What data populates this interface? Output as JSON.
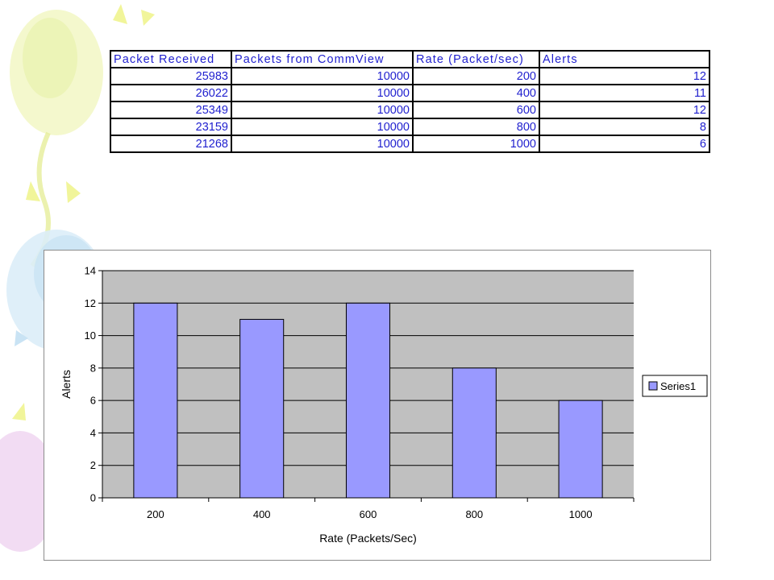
{
  "table": {
    "headers": [
      "Packet Received",
      "Packets from CommView",
      "Rate (Packet/sec)",
      "Alerts"
    ],
    "rows": [
      [
        "25983",
        "10000",
        "200",
        "12"
      ],
      [
        "26022",
        "10000",
        "400",
        "11"
      ],
      [
        "25349",
        "10000",
        "600",
        "12"
      ],
      [
        "23159",
        "10000",
        "800",
        "8"
      ],
      [
        "21268",
        "10000",
        "1000",
        "6"
      ]
    ]
  },
  "chart_data": {
    "type": "bar",
    "categories": [
      "200",
      "400",
      "600",
      "800",
      "1000"
    ],
    "series": [
      {
        "name": "Series1",
        "values": [
          12,
          11,
          12,
          8,
          6
        ]
      }
    ],
    "xlabel": "Rate (Packets/Sec)",
    "ylabel": "Alerts",
    "ylim": [
      0,
      14
    ],
    "yticks": [
      "0",
      "2",
      "4",
      "6",
      "8",
      "10",
      "12",
      "14"
    ],
    "grid": true,
    "legend": "right",
    "colors": {
      "bar": "#9999ff",
      "plot_area": "#c0c0c0",
      "table_text": "#1f1fcf"
    }
  }
}
